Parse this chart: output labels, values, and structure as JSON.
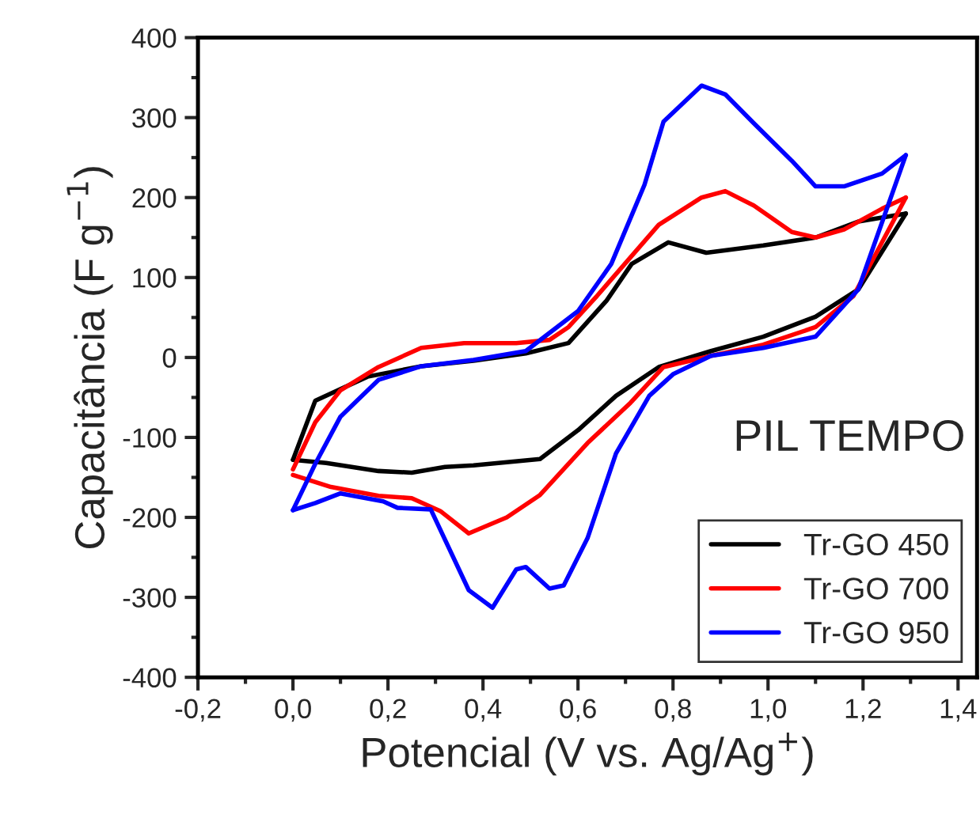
{
  "chart_data": {
    "type": "line",
    "xlabel": "Potencial (V vs. Ag/Ag$^{+}$)",
    "ylabel": "Capacitância (F g$^{−1}$)",
    "annotations": [
      "PIL TEMPO"
    ],
    "xlim": [
      -0.2,
      1.44
    ],
    "ylim": [
      -400,
      400
    ],
    "xticks": [
      {
        "value": -0.2,
        "label": "-0,2"
      },
      {
        "value": 0.0,
        "label": "0,0"
      },
      {
        "value": 0.2,
        "label": "0,2"
      },
      {
        "value": 0.4,
        "label": "0,4"
      },
      {
        "value": 0.6,
        "label": "0,6"
      },
      {
        "value": 0.8,
        "label": "0,8"
      },
      {
        "value": 1.0,
        "label": "1,0"
      },
      {
        "value": 1.2,
        "label": "1,2"
      },
      {
        "value": 1.4,
        "label": "1,4"
      }
    ],
    "yticks": [
      -400,
      -300,
      -200,
      -100,
      0,
      100,
      200,
      300,
      400
    ],
    "grid": false,
    "legend": "bottom right",
    "line_style": "solid",
    "marker": "none",
    "series": [
      {
        "name": "Tr-GO 450",
        "color": "#000000",
        "x": [
          0,
          0.047,
          0.157,
          0.27,
          0.38,
          0.49,
          0.58,
          0.66,
          0.713,
          0.79,
          0.87,
          0.99,
          1.1,
          1.19,
          1.29
        ],
        "values": [
          -128,
          -54,
          -24,
          -11,
          -4,
          5,
          18,
          71,
          117,
          144,
          131,
          140,
          150,
          170,
          180
        ]
      },
      {
        "color": "#000000",
        "x": [
          1.29,
          1.19,
          1.1,
          0.99,
          0.88,
          0.77,
          0.68,
          0.6,
          0.52,
          0.38,
          0.32,
          0.25,
          0.18,
          0.07,
          0
        ],
        "values": [
          180,
          85,
          51,
          26,
          8,
          -12,
          -48,
          -91,
          -127,
          -135,
          -137,
          -144,
          -142,
          -132,
          -128
        ]
      },
      {
        "name": "Tr-GO 700",
        "color": "#ff0000",
        "x": [
          0,
          0.047,
          0.1,
          0.18,
          0.27,
          0.36,
          0.47,
          0.54,
          0.58,
          0.64,
          0.77,
          0.86,
          0.91,
          0.97,
          1.05,
          1.1,
          1.16,
          1.24,
          1.29
        ],
        "values": [
          -140,
          -81,
          -41,
          -12,
          12,
          18,
          18,
          22,
          38,
          77,
          166,
          200,
          208,
          190,
          157,
          150,
          160,
          186,
          200
        ]
      },
      {
        "color": "#ff0000",
        "x": [
          1.29,
          1.18,
          1.1,
          0.99,
          0.88,
          0.78,
          0.71,
          0.62,
          0.52,
          0.45,
          0.37,
          0.31,
          0.25,
          0.18,
          0.08,
          0
        ],
        "values": [
          200,
          77,
          38,
          16,
          2,
          -12,
          -57,
          -107,
          -172,
          -200,
          -220,
          -192,
          -176,
          -173,
          -162,
          -147
        ]
      },
      {
        "name": "Tr-GO 950",
        "color": "#0000ff",
        "x": [
          0,
          0.047,
          0.1,
          0.18,
          0.27,
          0.38,
          0.49,
          0.6,
          0.67,
          0.74,
          0.78,
          0.86,
          0.91,
          0.97,
          1.05,
          1.1,
          1.16,
          1.24,
          1.29
        ],
        "values": [
          -191,
          -133,
          -74,
          -28,
          -11,
          -3,
          8,
          58,
          117,
          216,
          295,
          340,
          329,
          293,
          246,
          214,
          214,
          230,
          253
        ]
      },
      {
        "color": "#0000ff",
        "x": [
          1.29,
          1.19,
          1.1,
          0.99,
          0.88,
          0.8,
          0.75,
          0.68,
          0.62,
          0.57,
          0.54,
          0.49,
          0.47,
          0.42,
          0.37,
          0.29,
          0.22,
          0.19,
          0.1,
          0.047,
          0
        ],
        "values": [
          253,
          85,
          26,
          12,
          2,
          -21,
          -48,
          -120,
          -226,
          -285,
          -289,
          -262,
          -265,
          -313,
          -291,
          -190,
          -188,
          -180,
          -170,
          -182,
          -191
        ]
      }
    ]
  }
}
